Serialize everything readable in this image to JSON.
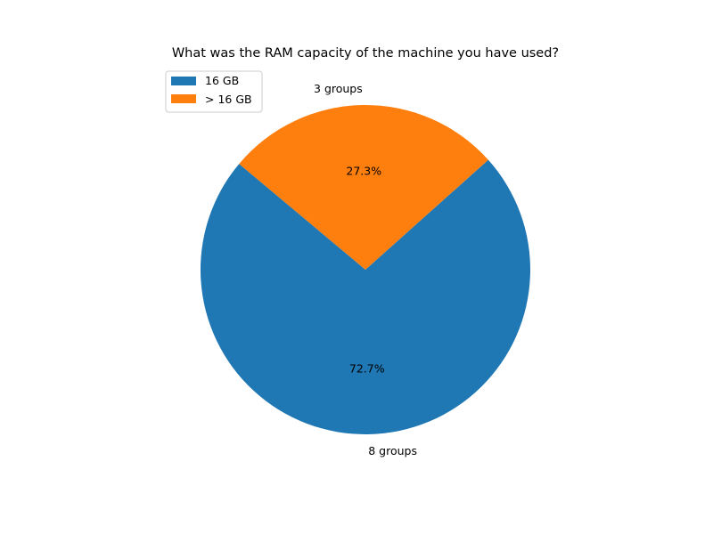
{
  "chart_data": {
    "type": "pie",
    "title": "What was the RAM capacity of the machine you have used?",
    "categories": [
      "16 GB",
      "> 16 GB"
    ],
    "values": [
      8,
      3
    ],
    "value_labels": [
      "8 groups",
      "3 groups"
    ],
    "percent_labels": [
      "72.7%",
      "27.3%"
    ],
    "colors": [
      "#1f77b4",
      "#ff7f0e"
    ],
    "start_angle_deg": 140,
    "counterclockwise": true,
    "legend": {
      "position": "top-left",
      "entries": [
        "16 GB",
        "> 16 GB"
      ]
    }
  }
}
